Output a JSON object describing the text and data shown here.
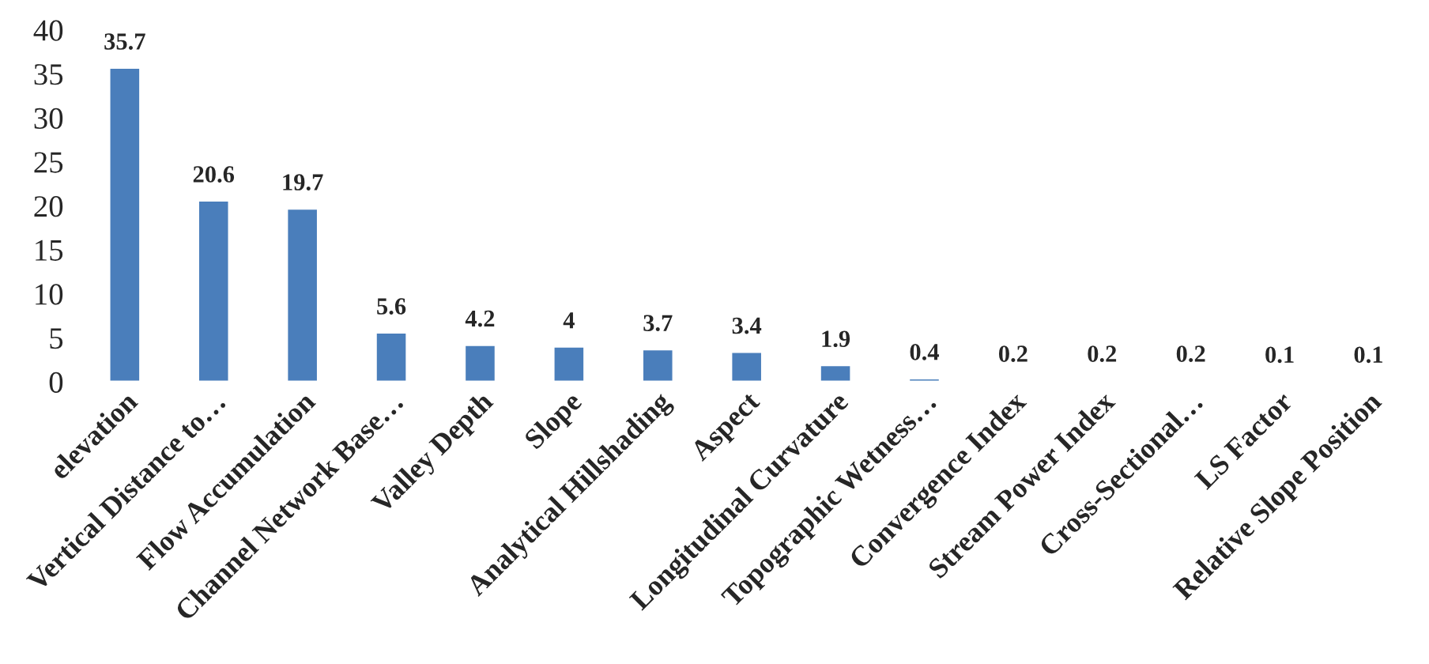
{
  "chart_data": {
    "type": "bar",
    "categories": [
      "elevation",
      "Vertical Distance to…",
      "Flow Accumulation",
      "Channel Network Base…",
      "Valley Depth",
      "Slope",
      "Analytical Hillshading",
      "Aspect",
      "Longitudinal Curvature",
      "Topographic Wetness…",
      "Convergence Index",
      "Stream Power Index",
      "Cross-Sectional…",
      "LS Factor",
      "Relative Slope Position"
    ],
    "values": [
      35.7,
      20.6,
      19.7,
      5.6,
      4.2,
      4,
      3.7,
      3.4,
      1.9,
      0.4,
      0.2,
      0.2,
      0.2,
      0.1,
      0.1
    ],
    "color": "#4a7ebb",
    "ylim": [
      0,
      40
    ],
    "yticks": [
      0,
      5,
      10,
      15,
      20,
      25,
      30,
      35,
      40
    ],
    "data_labels": true,
    "grid": false,
    "legend": false
  }
}
